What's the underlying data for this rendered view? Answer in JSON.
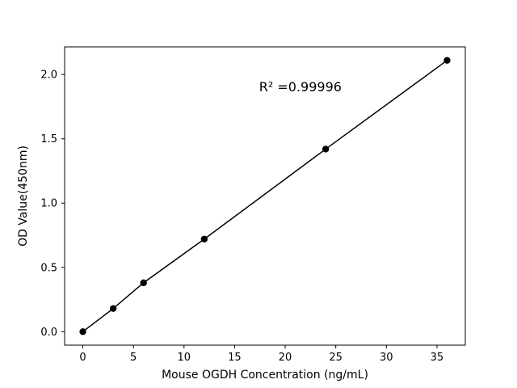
{
  "chart_data": {
    "type": "scatter",
    "title": "",
    "xlabel": "Mouse OGDH Concentration (ng/mL)",
    "ylabel": "OD Value(450nm)",
    "x": [
      0,
      3,
      6,
      12,
      24,
      36
    ],
    "y": [
      0.0,
      0.18,
      0.38,
      0.72,
      1.42,
      2.11
    ],
    "xlim": [
      -1.8,
      37.8
    ],
    "ylim": [
      -0.105,
      2.215
    ],
    "xticks": [
      0,
      5,
      10,
      15,
      20,
      25,
      30,
      35
    ],
    "yticks": [
      0.0,
      0.5,
      1.0,
      1.5,
      2.0
    ],
    "annotation": {
      "text": "R² =0.99996",
      "x": 21.5,
      "y": 1.87
    },
    "grid": false,
    "legend": null,
    "line_color": "#000000",
    "marker_color": "#000000",
    "background_color": "#ffffff"
  }
}
